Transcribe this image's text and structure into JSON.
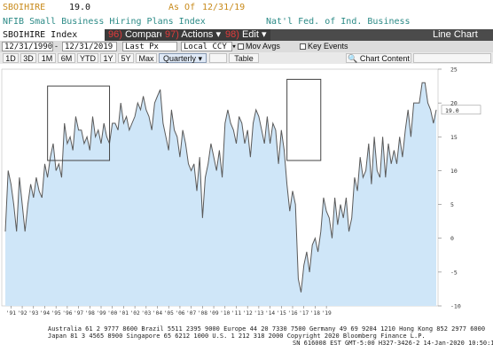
{
  "header": {
    "ticker": "SBOIHIRE",
    "last_value": "19.0",
    "as_of_label": "As Of",
    "as_of_date": "12/31/19",
    "description": "NFIB Small Business Hiring Plans Index",
    "source": "Nat'l Fed. of Ind. Business"
  },
  "toolbar": {
    "security": "SBOIHIRE Index",
    "compare": "Compare",
    "actions": "Actions",
    "edit": "Edit",
    "view": "Line Chart",
    "compare_num": "96)",
    "actions_num": "97)",
    "edit_num": "98)"
  },
  "controls": {
    "start_date": "12/31/1990",
    "end_date": "12/31/2019",
    "field": "Last Px",
    "currency": "Local CCY",
    "mov_avgs": "Mov Avgs",
    "key_events": "Key Events"
  },
  "periods": {
    "items": [
      "1D",
      "3D",
      "1M",
      "6M",
      "YTD",
      "1Y",
      "5Y",
      "Max"
    ],
    "frequency": "Quarterly",
    "table": "Table",
    "chart_content": "Chart Content"
  },
  "colors": {
    "line": "#5a5a5a",
    "fill": "#cfe6f8",
    "box": "#444444",
    "axis_text": "#333333"
  },
  "chart_data": {
    "type": "area",
    "y_axis": {
      "min": -10,
      "max": 25,
      "ticks": [
        25,
        20,
        15,
        10,
        5,
        0,
        -5,
        -10
      ],
      "position": "right"
    },
    "x_tick_labels": [
      "'91",
      "'92",
      "'93",
      "'94",
      "'95",
      "'96",
      "'97",
      "'98",
      "'99",
      "'00",
      "'01",
      "'02",
      "'03",
      "'04",
      "'05",
      "'06",
      "'07",
      "'08",
      "'09",
      "'10",
      "'11",
      "'12",
      "'13",
      "'14",
      "'15",
      "'16",
      "'17",
      "'18",
      "'19"
    ],
    "last_value_label": "19.0",
    "series": [
      {
        "start": "1990Q4",
        "frequency": "quarterly",
        "values": [
          1,
          10,
          8,
          5,
          1,
          9,
          5,
          1,
          5,
          8,
          6,
          9,
          7,
          6,
          11,
          9,
          12,
          14,
          10,
          11,
          9,
          17,
          14,
          15,
          13,
          18,
          16,
          16,
          14,
          15,
          13,
          18,
          15,
          16,
          14,
          17,
          15,
          14,
          17,
          17,
          16,
          20,
          17,
          18,
          16,
          17,
          18,
          20,
          19,
          21,
          19,
          18,
          16,
          20,
          21,
          22,
          17,
          15,
          13,
          19,
          16,
          15,
          12,
          16,
          14,
          11,
          10,
          11,
          7,
          12,
          3,
          9,
          11,
          14,
          12,
          10,
          13,
          9,
          17,
          19,
          17,
          16,
          14,
          18,
          17,
          14,
          16,
          12,
          17,
          19,
          18,
          16,
          14,
          18,
          14,
          17,
          16,
          11,
          16,
          13,
          8,
          4,
          7,
          5,
          -6,
          -8,
          -4,
          -2,
          -5,
          -1,
          0,
          -2,
          1,
          6,
          4,
          3,
          0,
          6,
          2,
          5,
          3,
          6,
          1,
          3,
          9,
          7,
          12,
          9,
          10,
          14,
          8,
          15,
          10,
          9,
          15,
          9,
          14,
          11,
          13,
          11,
          15,
          12,
          16,
          19,
          15,
          20,
          20,
          20,
          23,
          23,
          20,
          19,
          17,
          19
        ]
      }
    ],
    "annotations": [
      {
        "type": "box",
        "x_start": "1994Q3",
        "x_end": "2000Q1",
        "y_min": 11.5,
        "y_max": 22.5
      },
      {
        "type": "box",
        "x_start": "2015Q4",
        "x_end": "2018Q4",
        "y_min": 11.5,
        "y_max": 23.5
      }
    ]
  },
  "footer": {
    "line1": "Australia 61 2 9777 8600  Brazil 5511 2395 9000  Europe 44 20 7330 7500  Germany 49 69 9204 1210  Hong Kong 852 2977 6000",
    "line2": "Japan 81 3 4565 8900        Singapore 65 6212 1000        U.S. 1 212 318 2000              Copyright 2020 Bloomberg Finance L.P.",
    "line3": "SN 616008 EST  GMT-5:00 H327-3426-2 14-Jan-2020 10:50:17"
  }
}
